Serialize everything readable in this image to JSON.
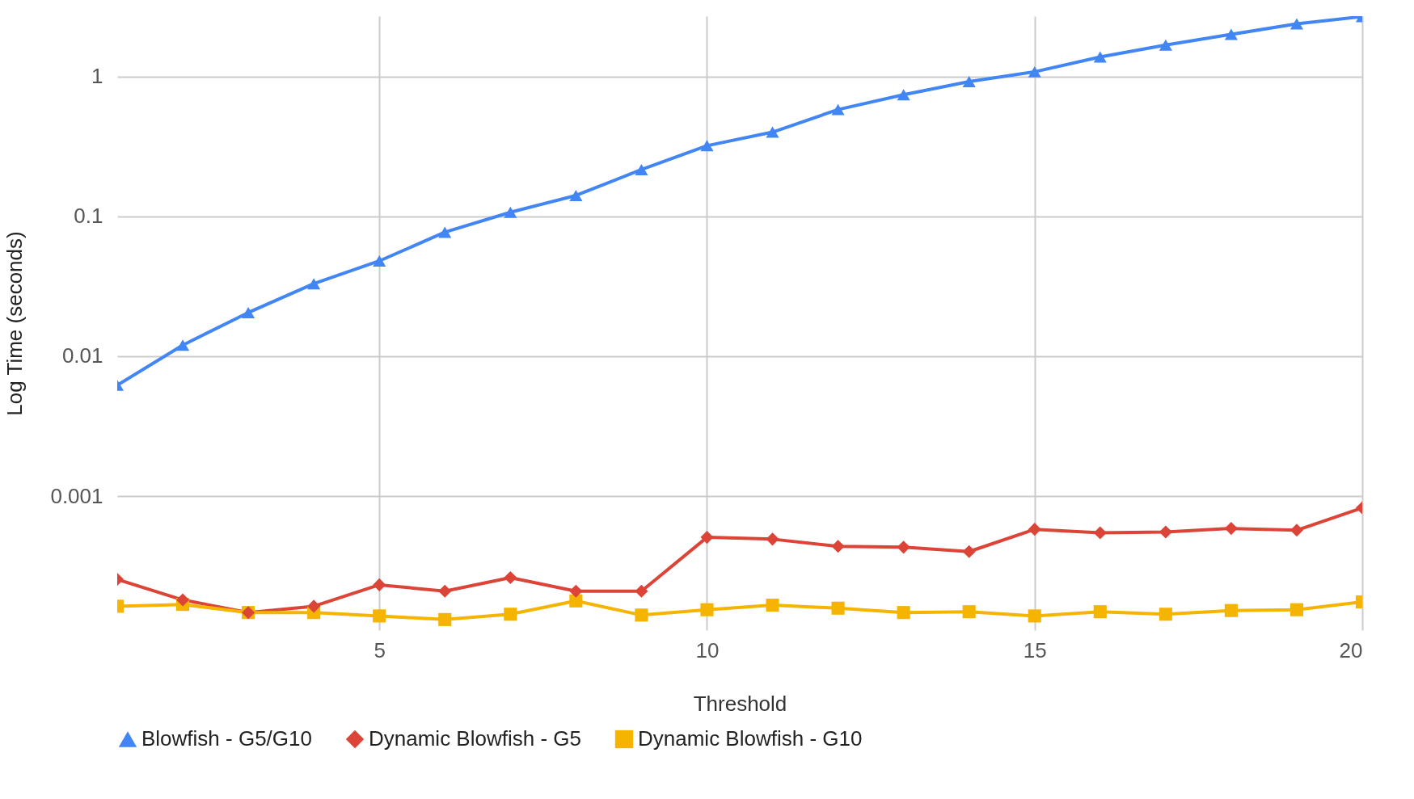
{
  "chart_data": {
    "type": "line",
    "xlabel": "Threshold",
    "ylabel": "Log Time (seconds)",
    "x": [
      1,
      2,
      3,
      4,
      5,
      6,
      7,
      8,
      9,
      10,
      11,
      12,
      13,
      14,
      15,
      16,
      17,
      18,
      19,
      20
    ],
    "series": [
      {
        "name": "Blowfish - G5/G10",
        "color": "#4285f4",
        "marker": "triangle",
        "values": [
          0.0062,
          0.012,
          0.0205,
          0.033,
          0.048,
          0.077,
          0.107,
          0.141,
          0.216,
          0.32,
          0.4,
          0.58,
          0.74,
          0.92,
          1.08,
          1.38,
          1.68,
          2.0,
          2.38,
          2.68
        ]
      },
      {
        "name": "Dynamic Blowfish - G5",
        "color": "#db4437",
        "marker": "diamond",
        "values": [
          0.000254,
          0.000181,
          0.000147,
          0.000163,
          0.000232,
          0.000209,
          0.000261,
          0.000209,
          0.000209,
          0.000507,
          0.000492,
          0.000437,
          0.000431,
          0.000401,
          0.000579,
          0.000546,
          0.000554,
          0.000587,
          0.00057,
          0.000824
        ]
      },
      {
        "name": "Dynamic Blowfish - G10",
        "color": "#f4b400",
        "marker": "square",
        "values": [
          0.000163,
          0.000168,
          0.000147,
          0.000147,
          0.000139,
          0.000131,
          0.000143,
          0.000178,
          0.000141,
          0.000154,
          0.000166,
          0.000158,
          0.000147,
          0.000149,
          0.000139,
          0.000149,
          0.000143,
          0.000152,
          0.000154,
          0.000175
        ]
      }
    ],
    "xlim": [
      1,
      20
    ],
    "xticks": [
      5,
      10,
      15,
      20
    ],
    "ylim": [
      0.00011,
      2.7
    ],
    "yticks": [
      0.001,
      0.01,
      0.1,
      1
    ],
    "log": true,
    "grid": true,
    "legend": "bottom",
    "line_style": "solid"
  }
}
